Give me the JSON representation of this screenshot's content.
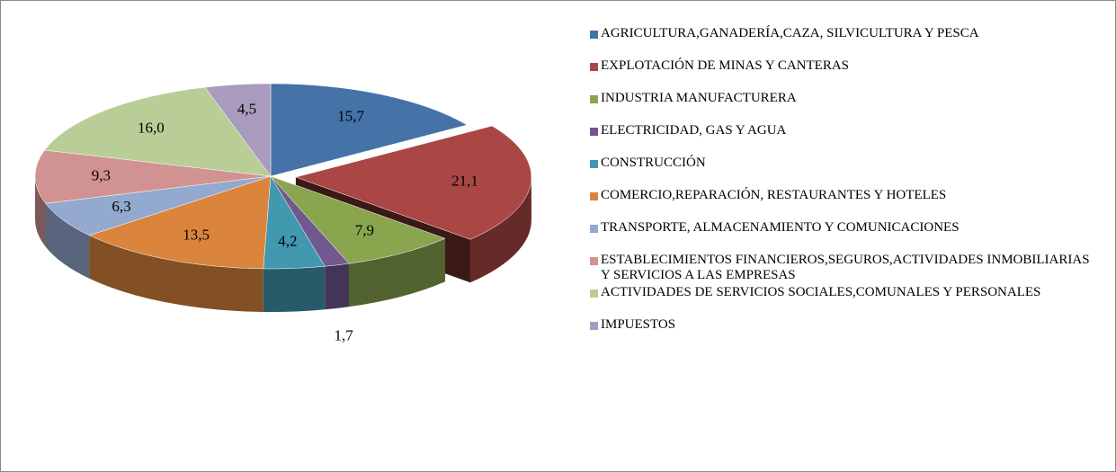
{
  "chart_data": {
    "type": "pie",
    "categories": [
      "AGRICULTURA,GANADERÍA,CAZA, SILVICULTURA Y PESCA",
      "EXPLOTACIÓN DE MINAS Y CANTERAS",
      "INDUSTRIA MANUFACTURERA",
      "ELECTRICIDAD, GAS Y AGUA",
      "CONSTRUCCIÓN",
      "COMERCIO,REPARACIÓN, RESTAURANTES Y HOTELES",
      "TRANSPORTE, ALMACENAMIENTO Y COMUNICACIONES",
      "ESTABLECIMIENTOS FINANCIEROS,SEGUROS,ACTIVIDADES INMOBILIARIAS Y SERVICIOS A LAS EMPRESAS",
      "ACTIVIDADES DE SERVICIOS SOCIALES,COMUNALES Y PERSONALES",
      "IMPUESTOS"
    ],
    "values": [
      15.7,
      21.1,
      7.9,
      1.7,
      4.2,
      13.5,
      6.3,
      9.3,
      16.0,
      4.5
    ],
    "value_labels": [
      "15,7",
      "21,1",
      "7,9",
      "1,7",
      "4,2",
      "13,5",
      "6,3",
      "9,3",
      "16,0",
      "4,5"
    ],
    "colors": [
      "#4572a7",
      "#aa4643",
      "#89a54e",
      "#71588f",
      "#4198af",
      "#db843d",
      "#93a9cf",
      "#d19392",
      "#b9cd96",
      "#a99bbd"
    ],
    "legend": "right"
  }
}
